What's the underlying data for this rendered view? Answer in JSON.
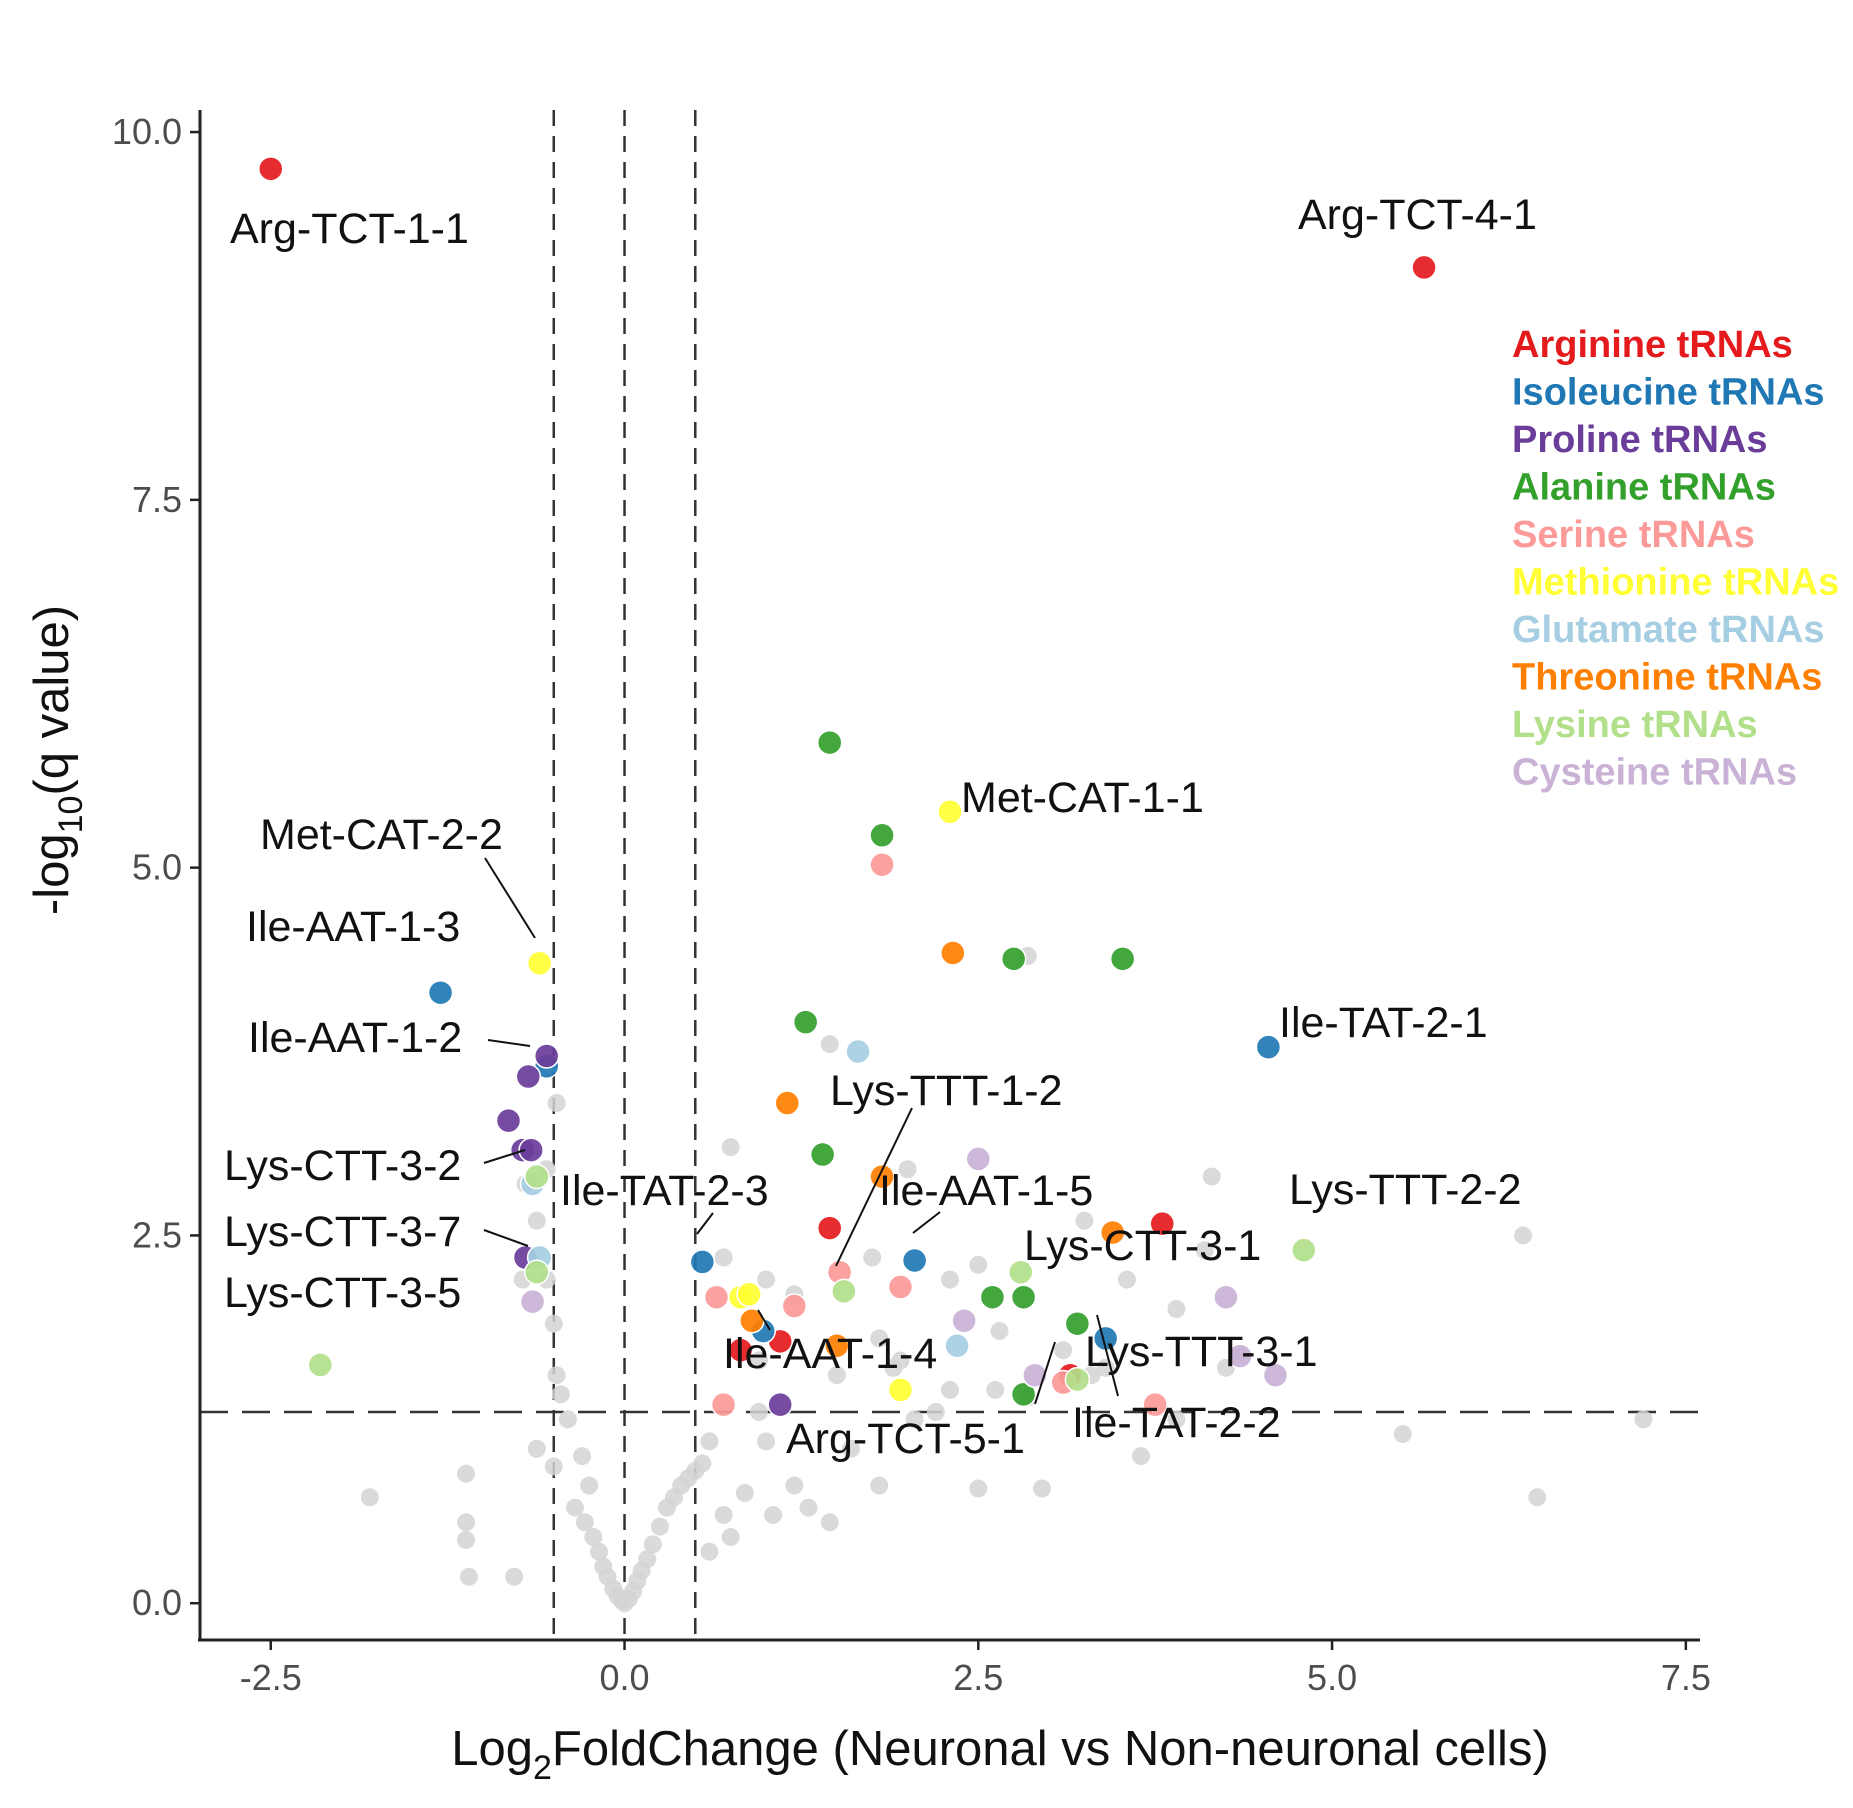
{
  "chart_data": {
    "type": "scatter",
    "title": "",
    "xlabel": {
      "prefix": "Log",
      "sub": "2",
      "suffix": "FoldChange (Neuronal vs Non-neuronal cells)"
    },
    "ylabel": {
      "prefix": "-log",
      "sub": "10",
      "suffix": "(q value)"
    },
    "xlim": [
      -3.0,
      7.6
    ],
    "ylim": [
      -0.25,
      10.15
    ],
    "x_ticks": [
      {
        "value": -2.5,
        "label": "-2.5"
      },
      {
        "value": 0.0,
        "label": "0.0"
      },
      {
        "value": 2.5,
        "label": "2.5"
      },
      {
        "value": 5.0,
        "label": "5.0"
      },
      {
        "value": 7.5,
        "label": "7.5"
      }
    ],
    "y_ticks": [
      {
        "value": 0.0,
        "label": "0.0"
      },
      {
        "value": 2.5,
        "label": "2.5"
      },
      {
        "value": 5.0,
        "label": "5.0"
      },
      {
        "value": 7.5,
        "label": "7.5"
      },
      {
        "value": 10.0,
        "label": "10.0"
      }
    ],
    "grid": false,
    "threshold_lines": {
      "vertical": [
        -0.5,
        0.0,
        0.5
      ],
      "horizontal": 1.3,
      "style": "dashed"
    },
    "legend": {
      "position": "top-right",
      "entries": [
        {
          "key": "arg",
          "label": "Arginine tRNAs",
          "color": "#e41a1c"
        },
        {
          "key": "ile",
          "label": "Isoleucine tRNAs",
          "color": "#1f78b4"
        },
        {
          "key": "pro",
          "label": "Proline tRNAs",
          "color": "#6a3d9a"
        },
        {
          "key": "ala",
          "label": "Alanine tRNAs",
          "color": "#33a02c"
        },
        {
          "key": "ser",
          "label": "Serine tRNAs",
          "color": "#fb9a99"
        },
        {
          "key": "met",
          "label": "Methionine tRNAs",
          "color": "#ffff33"
        },
        {
          "key": "glu",
          "label": "Glutamate tRNAs",
          "color": "#a6cee3"
        },
        {
          "key": "thr",
          "label": "Threonine tRNAs",
          "color": "#ff7f00"
        },
        {
          "key": "lys",
          "label": "Lysine tRNAs",
          "color": "#b2df8a"
        },
        {
          "key": "cys",
          "label": "Cysteine tRNAs",
          "color": "#cab2d6"
        }
      ]
    },
    "background_color": "#d3d3d3",
    "background_points": [
      [
        -1.8,
        0.72
      ],
      [
        -1.12,
        0.88
      ],
      [
        -1.12,
        0.55
      ],
      [
        -1.12,
        0.43
      ],
      [
        -1.1,
        0.18
      ],
      [
        -0.78,
        0.18
      ],
      [
        -0.62,
        1.05
      ],
      [
        -0.5,
        0.93
      ],
      [
        -0.35,
        0.65
      ],
      [
        -0.28,
        0.55
      ],
      [
        -0.22,
        0.45
      ],
      [
        -0.18,
        0.35
      ],
      [
        -0.15,
        0.25
      ],
      [
        -0.12,
        0.18
      ],
      [
        -0.08,
        0.1
      ],
      [
        -0.05,
        0.05
      ],
      [
        -0.02,
        0.02
      ],
      [
        0.0,
        0.0
      ],
      [
        0.03,
        0.03
      ],
      [
        0.06,
        0.08
      ],
      [
        0.09,
        0.15
      ],
      [
        0.12,
        0.22
      ],
      [
        0.16,
        0.3
      ],
      [
        0.2,
        0.4
      ],
      [
        0.25,
        0.52
      ],
      [
        0.3,
        0.65
      ],
      [
        0.35,
        0.72
      ],
      [
        0.4,
        0.8
      ],
      [
        0.45,
        0.85
      ],
      [
        0.55,
        0.95
      ],
      [
        0.6,
        1.1
      ],
      [
        0.7,
        0.6
      ],
      [
        0.75,
        0.45
      ],
      [
        0.85,
        0.75
      ],
      [
        0.95,
        1.3
      ],
      [
        1.0,
        1.1
      ],
      [
        1.05,
        0.6
      ],
      [
        1.2,
        0.8
      ],
      [
        1.3,
        0.65
      ],
      [
        1.45,
        0.55
      ],
      [
        1.6,
        1.05
      ],
      [
        1.8,
        0.8
      ],
      [
        1.9,
        1.6
      ],
      [
        2.05,
        1.25
      ],
      [
        2.3,
        1.45
      ],
      [
        2.5,
        0.78
      ],
      [
        2.62,
        1.45
      ],
      [
        2.85,
        1.4
      ],
      [
        2.95,
        0.78
      ],
      [
        3.1,
        1.72
      ],
      [
        3.4,
        1.6
      ],
      [
        3.65,
        1.0
      ],
      [
        3.9,
        1.25
      ],
      [
        4.25,
        1.6
      ],
      [
        5.5,
        1.15
      ],
      [
        6.45,
        0.72
      ],
      [
        7.2,
        1.25
      ],
      [
        -0.55,
        2.95
      ],
      [
        -0.55,
        2.2
      ],
      [
        -0.5,
        1.9
      ],
      [
        -0.48,
        1.55
      ],
      [
        -0.45,
        1.42
      ],
      [
        -0.4,
        1.25
      ],
      [
        -0.62,
        2.6
      ],
      [
        -0.7,
        2.85
      ],
      [
        -0.72,
        2.2
      ],
      [
        -0.48,
        3.4
      ],
      [
        0.75,
        3.1
      ],
      [
        0.7,
        2.35
      ],
      [
        1.0,
        2.2
      ],
      [
        1.45,
        3.8
      ],
      [
        1.75,
        2.35
      ],
      [
        1.8,
        1.8
      ],
      [
        1.95,
        1.65
      ],
      [
        2.3,
        2.2
      ],
      [
        2.5,
        2.3
      ],
      [
        2.65,
        1.85
      ],
      [
        2.85,
        4.4
      ],
      [
        3.3,
        1.55
      ],
      [
        3.55,
        2.2
      ],
      [
        3.9,
        2.0
      ],
      [
        4.15,
        2.9
      ],
      [
        4.35,
        1.7
      ],
      [
        6.35,
        2.5
      ],
      [
        4.1,
        2.4
      ],
      [
        3.25,
        2.6
      ],
      [
        2.0,
        2.95
      ],
      [
        1.2,
        2.1
      ],
      [
        0.95,
        1.65
      ],
      [
        0.6,
        0.35
      ],
      [
        1.5,
        1.55
      ],
      [
        2.2,
        1.3
      ],
      [
        0.5,
        0.9
      ],
      [
        -0.3,
        1.0
      ],
      [
        -0.25,
        0.8
      ]
    ],
    "points": [
      {
        "cat": "arg",
        "x": -2.5,
        "y": 9.75
      },
      {
        "cat": "arg",
        "x": 5.65,
        "y": 9.08
      },
      {
        "cat": "arg",
        "x": 3.8,
        "y": 2.58
      },
      {
        "cat": "arg",
        "x": 1.45,
        "y": 2.55
      },
      {
        "cat": "arg",
        "x": 1.1,
        "y": 1.78
      },
      {
        "cat": "arg",
        "x": 0.82,
        "y": 1.72
      },
      {
        "cat": "arg",
        "x": 3.15,
        "y": 1.55
      },
      {
        "cat": "ile",
        "x": -1.3,
        "y": 4.15
      },
      {
        "cat": "ile",
        "x": -0.55,
        "y": 3.65
      },
      {
        "cat": "ile",
        "x": 4.55,
        "y": 3.78
      },
      {
        "cat": "ile",
        "x": 0.55,
        "y": 2.32
      },
      {
        "cat": "ile",
        "x": 2.05,
        "y": 2.33
      },
      {
        "cat": "ile",
        "x": 0.98,
        "y": 1.85
      },
      {
        "cat": "ile",
        "x": 3.4,
        "y": 1.8
      },
      {
        "cat": "pro",
        "x": -0.55,
        "y": 3.72
      },
      {
        "cat": "pro",
        "x": -0.68,
        "y": 3.58
      },
      {
        "cat": "pro",
        "x": -0.82,
        "y": 3.28
      },
      {
        "cat": "pro",
        "x": -0.72,
        "y": 3.08
      },
      {
        "cat": "pro",
        "x": -0.66,
        "y": 3.08
      },
      {
        "cat": "pro",
        "x": -0.7,
        "y": 2.35
      },
      {
        "cat": "pro",
        "x": 1.1,
        "y": 1.35
      },
      {
        "cat": "ala",
        "x": 1.45,
        "y": 5.85
      },
      {
        "cat": "ala",
        "x": 1.82,
        "y": 5.22
      },
      {
        "cat": "ala",
        "x": 2.75,
        "y": 4.38
      },
      {
        "cat": "ala",
        "x": 3.52,
        "y": 4.38
      },
      {
        "cat": "ala",
        "x": 1.28,
        "y": 3.95
      },
      {
        "cat": "ala",
        "x": 1.4,
        "y": 3.05
      },
      {
        "cat": "ala",
        "x": 2.6,
        "y": 2.08
      },
      {
        "cat": "ala",
        "x": 2.82,
        "y": 2.08
      },
      {
        "cat": "ala",
        "x": 3.2,
        "y": 1.9
      },
      {
        "cat": "ala",
        "x": 2.82,
        "y": 1.42
      },
      {
        "cat": "ser",
        "x": 1.82,
        "y": 5.02
      },
      {
        "cat": "ser",
        "x": 1.52,
        "y": 2.25
      },
      {
        "cat": "ser",
        "x": 1.95,
        "y": 2.15
      },
      {
        "cat": "ser",
        "x": 0.65,
        "y": 2.08
      },
      {
        "cat": "ser",
        "x": 1.2,
        "y": 2.02
      },
      {
        "cat": "ser",
        "x": 0.7,
        "y": 1.35
      },
      {
        "cat": "ser",
        "x": 3.1,
        "y": 1.5
      },
      {
        "cat": "ser",
        "x": 3.75,
        "y": 1.35
      },
      {
        "cat": "met",
        "x": 2.3,
        "y": 5.38
      },
      {
        "cat": "met",
        "x": -0.6,
        "y": 4.35
      },
      {
        "cat": "met",
        "x": 0.82,
        "y": 2.08
      },
      {
        "cat": "met",
        "x": 0.88,
        "y": 2.1
      },
      {
        "cat": "met",
        "x": 1.95,
        "y": 1.45
      },
      {
        "cat": "glu",
        "x": 1.65,
        "y": 3.75
      },
      {
        "cat": "glu",
        "x": -0.65,
        "y": 2.85
      },
      {
        "cat": "glu",
        "x": -0.6,
        "y": 2.35
      },
      {
        "cat": "glu",
        "x": 2.35,
        "y": 1.75
      },
      {
        "cat": "thr",
        "x": 2.32,
        "y": 4.42
      },
      {
        "cat": "thr",
        "x": 1.15,
        "y": 3.4
      },
      {
        "cat": "thr",
        "x": 1.82,
        "y": 2.9
      },
      {
        "cat": "thr",
        "x": 3.45,
        "y": 2.52
      },
      {
        "cat": "thr",
        "x": 0.9,
        "y": 1.92
      },
      {
        "cat": "thr",
        "x": 1.5,
        "y": 1.75
      },
      {
        "cat": "lys",
        "x": -2.15,
        "y": 1.62
      },
      {
        "cat": "lys",
        "x": -0.62,
        "y": 2.9
      },
      {
        "cat": "lys",
        "x": -0.62,
        "y": 2.25
      },
      {
        "cat": "lys",
        "x": 1.55,
        "y": 2.12
      },
      {
        "cat": "lys",
        "x": 2.8,
        "y": 2.25
      },
      {
        "cat": "lys",
        "x": 4.8,
        "y": 2.4
      },
      {
        "cat": "lys",
        "x": 3.2,
        "y": 1.52
      },
      {
        "cat": "cys",
        "x": 2.5,
        "y": 3.02
      },
      {
        "cat": "cys",
        "x": -0.65,
        "y": 2.05
      },
      {
        "cat": "cys",
        "x": 2.4,
        "y": 1.92
      },
      {
        "cat": "cys",
        "x": 4.25,
        "y": 2.08
      },
      {
        "cat": "cys",
        "x": 4.35,
        "y": 1.68
      },
      {
        "cat": "cys",
        "x": 4.6,
        "y": 1.55
      },
      {
        "cat": "cys",
        "x": 2.9,
        "y": 1.55
      }
    ],
    "annotations": [
      {
        "label": "Arg-TCT-1-1"
      },
      {
        "label": "Arg-TCT-4-1"
      },
      {
        "label": "Met-CAT-1-1"
      },
      {
        "label": "Met-CAT-2-2"
      },
      {
        "label": "Ile-AAT-1-3"
      },
      {
        "label": "Ile-AAT-1-2"
      },
      {
        "label": "Ile-TAT-2-1"
      },
      {
        "label": "Lys-TTT-1-2"
      },
      {
        "label": "Lys-CTT-3-2"
      },
      {
        "label": "Ile-TAT-2-3"
      },
      {
        "label": "Ile-AAT-1-5"
      },
      {
        "label": "Lys-TTT-2-2"
      },
      {
        "label": "Lys-CTT-3-7"
      },
      {
        "label": "Lys-CTT-3-1"
      },
      {
        "label": "Lys-CTT-3-5"
      },
      {
        "label": "Ile-AAT-1-4"
      },
      {
        "label": "Lys-TTT-3-1"
      },
      {
        "label": "Arg-TCT-5-1"
      },
      {
        "label": "Ile-TAT-2-2"
      }
    ]
  }
}
